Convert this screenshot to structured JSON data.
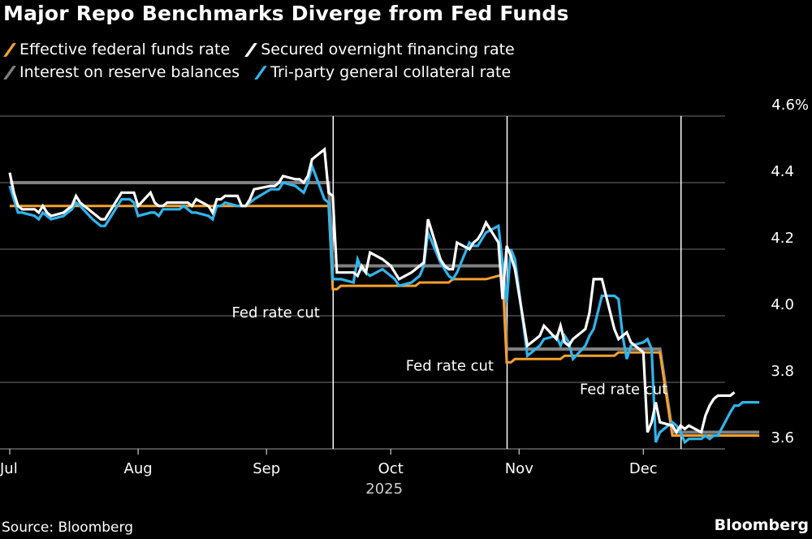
{
  "title": "Major Repo Benchmarks Diverge from Fed Funds",
  "legend": [
    {
      "label": "Effective federal funds rate",
      "color": "#f7a12e"
    },
    {
      "label": "Secured overnight financing rate",
      "color": "#ffffff"
    },
    {
      "label": "Interest on reserve balances",
      "color": "#808080"
    },
    {
      "label": "Tri-party general collateral rate",
      "color": "#2fb5ee"
    }
  ],
  "footer": {
    "source": "Source: Bloomberg",
    "brand": "Bloomberg"
  },
  "chart_data": {
    "type": "line",
    "title": "Major Repo Benchmarks Diverge from Fed Funds",
    "xlabel": "2025",
    "ylabel": "",
    "ylim": [
      3.6,
      4.6
    ],
    "y_ticks": [
      "3.6",
      "3.8",
      "4.0",
      "4.2",
      "4.4",
      "4.6%"
    ],
    "y_tick_values": [
      3.6,
      3.8,
      4.0,
      4.2,
      4.4,
      4.6
    ],
    "x_ticks": [
      {
        "label": "Jul",
        "day": 0
      },
      {
        "label": "Aug",
        "day": 31
      },
      {
        "label": "Sep",
        "day": 62
      },
      {
        "label": "Oct",
        "day": 92
      },
      {
        "label": "Nov",
        "day": 123
      },
      {
        "label": "Dec",
        "day": 153
      }
    ],
    "x_year_label": "2025",
    "x_range_days": [
      0,
      181
    ],
    "grid": true,
    "legend_position": "top-left",
    "annotations": [
      {
        "label": "Fed rate cut",
        "day": 78,
        "value": 3.995
      },
      {
        "label": "Fed rate cut",
        "day": 120,
        "value": 3.835
      },
      {
        "label": "Fed rate cut",
        "day": 162,
        "value": 3.765
      }
    ],
    "x_days": [
      0,
      1,
      2,
      3,
      6,
      7,
      8,
      9,
      10,
      13,
      14,
      15,
      16,
      17,
      20,
      21,
      22,
      23,
      24,
      27,
      28,
      29,
      30,
      31,
      34,
      35,
      36,
      37,
      38,
      41,
      42,
      43,
      44,
      45,
      48,
      49,
      50,
      51,
      52,
      55,
      56,
      57,
      58,
      59,
      63,
      64,
      65,
      66,
      69,
      70,
      71,
      72,
      73,
      76,
      77,
      78,
      79,
      80,
      83,
      84,
      85,
      86,
      87,
      90,
      91,
      92,
      93,
      94,
      97,
      98,
      99,
      100,
      101,
      104,
      105,
      106,
      107,
      108,
      111,
      112,
      113,
      114,
      115,
      118,
      119,
      120,
      121,
      122,
      125,
      126,
      127,
      128,
      129,
      132,
      133,
      134,
      135,
      136,
      139,
      140,
      141,
      142,
      143,
      146,
      147,
      148,
      149,
      150,
      153,
      154,
      155,
      156,
      157,
      160,
      161,
      162,
      163,
      164,
      167,
      168,
      169,
      170,
      171,
      174,
      175,
      176,
      177,
      178,
      181
    ],
    "series": [
      {
        "name": "Effective federal funds rate",
        "color": "#f7a12e",
        "values": [
          4.33,
          4.33,
          4.33,
          4.33,
          4.33,
          4.33,
          4.33,
          4.33,
          4.33,
          4.33,
          4.33,
          4.33,
          4.33,
          4.33,
          4.33,
          4.33,
          4.33,
          4.33,
          4.33,
          4.33,
          4.33,
          4.33,
          4.33,
          4.33,
          4.33,
          4.33,
          4.33,
          4.33,
          4.33,
          4.33,
          4.33,
          4.33,
          4.33,
          4.33,
          4.33,
          4.33,
          4.33,
          4.33,
          4.33,
          4.33,
          4.33,
          4.33,
          4.33,
          4.33,
          4.33,
          4.33,
          4.33,
          4.33,
          4.33,
          4.33,
          4.33,
          4.33,
          4.33,
          4.33,
          4.33,
          4.08,
          4.08,
          4.09,
          4.09,
          4.09,
          4.09,
          4.09,
          4.09,
          4.09,
          4.09,
          4.09,
          4.09,
          4.09,
          4.09,
          4.09,
          4.1,
          4.1,
          4.1,
          4.1,
          4.1,
          4.1,
          4.11,
          4.11,
          4.11,
          4.11,
          4.11,
          4.11,
          4.11,
          4.12,
          4.12,
          3.86,
          3.86,
          3.87,
          3.87,
          3.87,
          3.87,
          3.87,
          3.87,
          3.87,
          3.87,
          3.88,
          3.88,
          3.88,
          3.88,
          3.88,
          3.88,
          3.88,
          3.88,
          3.88,
          3.89,
          3.89,
          3.89,
          3.89,
          3.89,
          3.89,
          3.89,
          3.89,
          3.89,
          3.64,
          3.64,
          3.64,
          3.64,
          3.64,
          3.64,
          3.64,
          3.64,
          3.64,
          3.64,
          3.64,
          3.64,
          3.64,
          3.64,
          3.64,
          3.64,
          3.64,
          3.64
        ]
      },
      {
        "name": "Interest on reserve balances",
        "color": "#808080",
        "values": [
          4.4,
          4.4,
          4.4,
          4.4,
          4.4,
          4.4,
          4.4,
          4.4,
          4.4,
          4.4,
          4.4,
          4.4,
          4.4,
          4.4,
          4.4,
          4.4,
          4.4,
          4.4,
          4.4,
          4.4,
          4.4,
          4.4,
          4.4,
          4.4,
          4.4,
          4.4,
          4.4,
          4.4,
          4.4,
          4.4,
          4.4,
          4.4,
          4.4,
          4.4,
          4.4,
          4.4,
          4.4,
          4.4,
          4.4,
          4.4,
          4.4,
          4.4,
          4.4,
          4.4,
          4.4,
          4.4,
          4.4,
          4.4,
          4.4,
          4.4,
          4.4,
          4.4,
          4.4,
          4.4,
          4.4,
          4.15,
          4.15,
          4.15,
          4.15,
          4.15,
          4.15,
          4.15,
          4.15,
          4.15,
          4.15,
          4.15,
          4.15,
          4.15,
          4.15,
          4.15,
          4.15,
          4.15,
          4.15,
          4.15,
          4.15,
          4.15,
          4.15,
          4.15,
          4.15,
          4.15,
          4.15,
          4.15,
          4.15,
          4.15,
          4.15,
          3.9,
          3.9,
          3.9,
          3.9,
          3.9,
          3.9,
          3.9,
          3.9,
          3.9,
          3.9,
          3.9,
          3.9,
          3.9,
          3.9,
          3.9,
          3.9,
          3.9,
          3.9,
          3.9,
          3.9,
          3.9,
          3.9,
          3.9,
          3.9,
          3.9,
          3.9,
          3.9,
          3.9,
          3.65,
          3.65,
          3.65,
          3.65,
          3.65,
          3.65,
          3.65,
          3.65,
          3.65,
          3.65,
          3.65,
          3.65,
          3.65,
          3.65,
          3.65,
          3.65,
          3.65,
          3.65
        ]
      },
      {
        "name": "Tri-party general collateral rate",
        "color": "#2fb5ee",
        "values": [
          4.39,
          4.35,
          4.31,
          4.31,
          4.3,
          4.29,
          4.31,
          4.3,
          4.29,
          4.3,
          4.31,
          4.32,
          4.34,
          4.33,
          4.29,
          4.28,
          4.27,
          4.27,
          4.29,
          4.35,
          4.35,
          4.35,
          4.34,
          4.3,
          4.31,
          4.31,
          4.3,
          4.32,
          4.32,
          4.32,
          4.33,
          4.32,
          4.31,
          4.31,
          4.3,
          4.29,
          4.33,
          4.33,
          4.34,
          4.33,
          4.33,
          4.33,
          4.34,
          4.35,
          4.38,
          4.38,
          4.38,
          4.4,
          4.39,
          4.38,
          4.37,
          4.4,
          4.45,
          4.35,
          4.34,
          4.11,
          4.11,
          4.11,
          4.1,
          4.17,
          4.14,
          4.13,
          4.12,
          4.14,
          4.13,
          4.12,
          4.11,
          4.09,
          4.1,
          4.11,
          4.12,
          4.15,
          4.25,
          4.16,
          4.14,
          4.12,
          4.11,
          4.13,
          4.22,
          4.21,
          4.21,
          4.23,
          4.25,
          4.27,
          4.16,
          4.04,
          4.2,
          4.17,
          3.88,
          3.89,
          3.9,
          3.91,
          3.93,
          3.94,
          3.91,
          3.94,
          3.92,
          3.87,
          3.91,
          3.94,
          3.96,
          4.01,
          4.06,
          4.06,
          4.05,
          3.94,
          3.87,
          3.91,
          3.92,
          3.93,
          3.9,
          3.62,
          3.65,
          3.68,
          3.67,
          3.65,
          3.62,
          3.63,
          3.63,
          3.64,
          3.63,
          3.64,
          3.64,
          3.71,
          3.73,
          3.73,
          3.74,
          3.74,
          3.74
        ]
      },
      {
        "name": "Secured overnight financing rate",
        "color": "#ffffff",
        "values": [
          4.43,
          4.37,
          4.33,
          4.32,
          4.32,
          4.31,
          4.33,
          4.31,
          4.3,
          4.31,
          4.32,
          4.33,
          4.36,
          4.34,
          4.31,
          4.3,
          4.29,
          4.29,
          4.31,
          4.37,
          4.37,
          4.37,
          4.37,
          4.33,
          4.37,
          4.34,
          4.33,
          4.33,
          4.34,
          4.34,
          4.34,
          4.34,
          4.33,
          4.35,
          4.33,
          4.31,
          4.35,
          4.35,
          4.36,
          4.36,
          4.33,
          4.33,
          4.35,
          4.38,
          4.39,
          4.39,
          4.4,
          4.42,
          4.41,
          4.41,
          4.4,
          4.42,
          4.47,
          4.5,
          4.37,
          4.36,
          4.13,
          4.13,
          4.13,
          4.12,
          4.15,
          4.13,
          4.19,
          4.17,
          4.16,
          4.15,
          4.13,
          4.11,
          4.13,
          4.14,
          4.15,
          4.16,
          4.29,
          4.17,
          4.15,
          4.14,
          4.14,
          4.22,
          4.2,
          4.22,
          4.23,
          4.25,
          4.28,
          4.22,
          4.05,
          4.21,
          4.18,
          4.14,
          3.91,
          3.92,
          3.93,
          3.94,
          3.97,
          3.93,
          3.97,
          3.92,
          3.91,
          3.93,
          3.96,
          4.01,
          4.11,
          4.11,
          4.11,
          3.96,
          3.93,
          3.94,
          3.95,
          3.92,
          3.89,
          3.65,
          3.68,
          3.74,
          3.68,
          3.67,
          3.65,
          3.67,
          3.66,
          3.67,
          3.65,
          3.7,
          3.73,
          3.75,
          3.76,
          3.76,
          3.77
        ]
      }
    ]
  }
}
